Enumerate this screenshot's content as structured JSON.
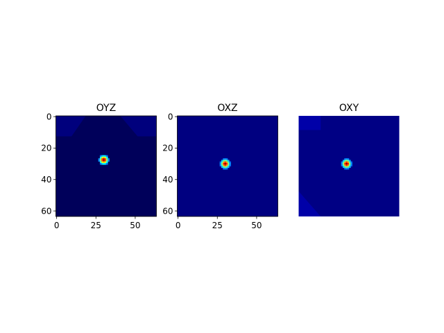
{
  "chart_data": [
    {
      "type": "heatmap",
      "title": "OYZ",
      "image_size": [
        64,
        64
      ],
      "colormap": "jet",
      "background_color": "#00005a",
      "xlim": [
        0,
        64
      ],
      "ylim": [
        64,
        0
      ],
      "xticks": [
        0,
        25,
        50
      ],
      "yticks": [
        0,
        20,
        40,
        60
      ],
      "show_x_axis": true,
      "show_y_axis": true,
      "regions": [
        {
          "shape": "polygon",
          "color": "#00007d",
          "points": [
            [
              0,
              0
            ],
            [
              19,
              0
            ],
            [
              10,
              13
            ],
            [
              0,
              13
            ]
          ]
        },
        {
          "shape": "polygon",
          "color": "#00007d",
          "points": [
            [
              41,
              0
            ],
            [
              64,
              0
            ],
            [
              64,
              13
            ],
            [
              52,
              13
            ]
          ]
        }
      ],
      "peak": {
        "x": 30.5,
        "y": 28,
        "radius": 3.2
      }
    },
    {
      "type": "heatmap",
      "title": "OXZ",
      "image_size": [
        64,
        64
      ],
      "colormap": "jet",
      "background_color": "#000080",
      "xlim": [
        0,
        64
      ],
      "ylim": [
        64,
        0
      ],
      "xticks": [
        0,
        25,
        50
      ],
      "yticks": [
        0,
        20,
        40,
        60
      ],
      "show_x_axis": true,
      "show_y_axis": true,
      "regions": [],
      "peak": {
        "x": 30.5,
        "y": 30.5,
        "radius": 3.2
      }
    },
    {
      "type": "heatmap",
      "title": "OXY",
      "image_size": [
        64,
        64
      ],
      "colormap": "jet",
      "background_color": "#000084",
      "xlim": [
        0,
        64
      ],
      "ylim": [
        64,
        0
      ],
      "xticks": [],
      "yticks": [],
      "show_x_axis": false,
      "show_y_axis": false,
      "regions": [
        {
          "shape": "polygon",
          "color": "#0000a8",
          "points": [
            [
              0,
              0
            ],
            [
              14,
              0
            ],
            [
              14,
              9
            ],
            [
              0,
              9
            ]
          ]
        },
        {
          "shape": "polygon",
          "color": "#0000a8",
          "points": [
            [
              0,
              48
            ],
            [
              14,
              64
            ],
            [
              0,
              64
            ]
          ]
        }
      ],
      "peak": {
        "x": 30.5,
        "y": 30.5,
        "radius": 3.2
      }
    }
  ]
}
